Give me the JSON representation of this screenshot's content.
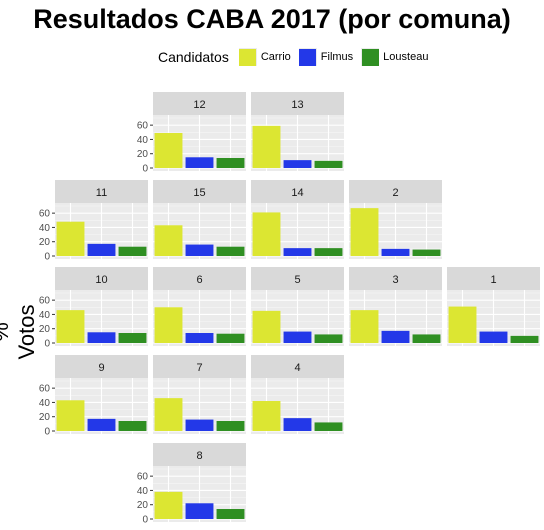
{
  "chart_data": {
    "type": "bar",
    "title": "Resultados CABA 2017 (por comuna)",
    "ylabel": "% Votos",
    "xlabel": "",
    "legend": {
      "title": "Candidatos",
      "position": "top",
      "entries": [
        {
          "name": "Carrio",
          "color": "#dce632"
        },
        {
          "name": "Filmus",
          "color": "#2338e8"
        },
        {
          "name": "Lousteau",
          "color": "#2f8f22"
        }
      ]
    },
    "ylim": [
      0,
      70
    ],
    "yticks": [
      0,
      20,
      40,
      60
    ],
    "grid": true,
    "categories": [
      "Carrio",
      "Filmus",
      "Lousteau"
    ],
    "panels": [
      {
        "comuna": "12",
        "values": [
          49,
          15,
          14
        ]
      },
      {
        "comuna": "13",
        "values": [
          59,
          11,
          10
        ]
      },
      {
        "comuna": "11",
        "values": [
          48,
          17,
          13
        ]
      },
      {
        "comuna": "15",
        "values": [
          43,
          16,
          13
        ]
      },
      {
        "comuna": "14",
        "values": [
          61,
          11,
          11
        ]
      },
      {
        "comuna": "2",
        "values": [
          67,
          10,
          9
        ]
      },
      {
        "comuna": "10",
        "values": [
          46,
          15,
          14
        ]
      },
      {
        "comuna": "6",
        "values": [
          50,
          14,
          13
        ]
      },
      {
        "comuna": "5",
        "values": [
          45,
          16,
          12
        ]
      },
      {
        "comuna": "3",
        "values": [
          46,
          17,
          12
        ]
      },
      {
        "comuna": "1",
        "values": [
          51,
          16,
          10
        ]
      },
      {
        "comuna": "9",
        "values": [
          43,
          17,
          14
        ]
      },
      {
        "comuna": "7",
        "values": [
          46,
          16,
          14
        ]
      },
      {
        "comuna": "4",
        "values": [
          42,
          18,
          12
        ]
      },
      {
        "comuna": "8",
        "values": [
          38,
          22,
          14
        ]
      }
    ]
  }
}
